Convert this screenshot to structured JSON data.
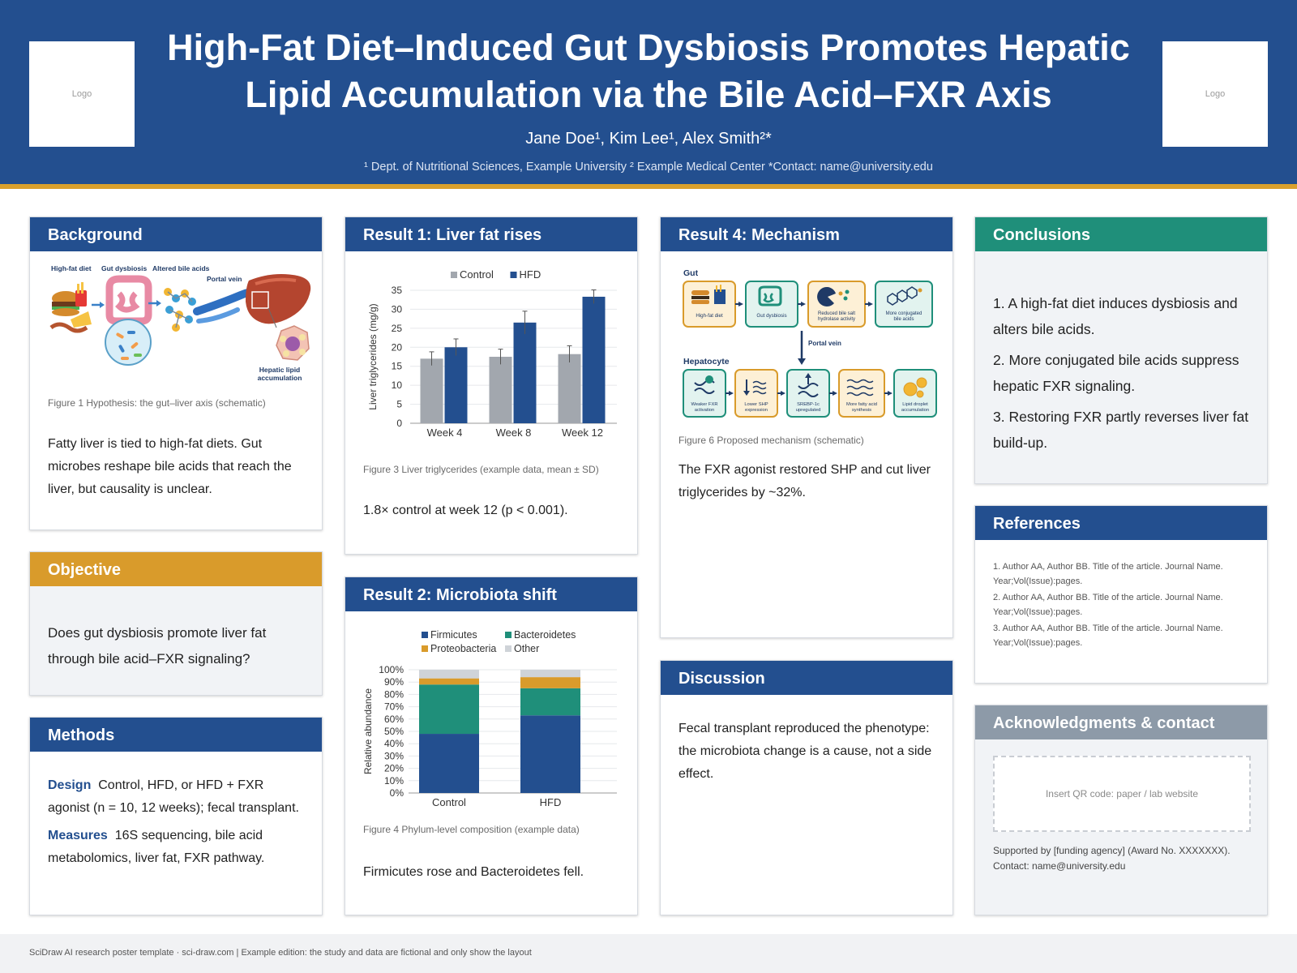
{
  "header": {
    "logo_left": "Logo",
    "logo_right": "Logo",
    "title": "High-Fat Diet–Induced Gut Dysbiosis Promotes Hepatic Lipid Accumulation via the Bile Acid–FXR Axis",
    "authors": "Jane Doe¹, Kim Lee¹, Alex Smith²*",
    "affiliations": "¹ Dept. of Nutritional Sciences, Example University   ² Example Medical Center   *Contact: name@university.edu"
  },
  "background": {
    "heading": "Background",
    "diagram_labels": {
      "high_fat_diet": "High-fat diet",
      "gut_dysbiosis": "Gut dysbiosis",
      "altered_bile_acids": "Altered bile acids",
      "portal_vein": "Portal vein",
      "hepatic_lipid": "Hepatic lipid",
      "accumulation": "accumulation"
    },
    "caption": "Figure 1  Hypothesis: the gut–liver axis (schematic)",
    "text": "Fatty liver is tied to high-fat diets. Gut microbes reshape bile acids that reach the liver, but causality is unclear."
  },
  "objective": {
    "heading": "Objective",
    "text": "Does gut dysbiosis promote liver fat through bile acid–FXR signaling?"
  },
  "methods": {
    "heading": "Methods",
    "design_label": "Design",
    "design_text": "Control, HFD, or HFD + FXR agonist (n = 10, 12 weeks); fecal transplant.",
    "measures_label": "Measures",
    "measures_text": "16S sequencing, bile acid metabolomics, liver fat, FXR pathway."
  },
  "result1": {
    "heading": "Result 1: Liver fat rises",
    "caption": "Figure 3  Liver triglycerides (example data, mean ± SD)",
    "text": "1.8× control at week 12 (p < 0.001)."
  },
  "result2": {
    "heading": "Result 2: Microbiota shift",
    "caption": "Figure 4  Phylum-level composition (example data)",
    "text": "Firmicutes rose and Bacteroidetes fell."
  },
  "result4": {
    "heading": "Result 4: Mechanism",
    "gut_label": "Gut",
    "hepatocyte_label": "Hepatocyte",
    "portal_vein": "Portal vein",
    "gut_steps": [
      {
        "l1": "High-fat diet",
        "l2": ""
      },
      {
        "l1": "Gut dysbiosis",
        "l2": ""
      },
      {
        "l1": "Reduced bile salt",
        "l2": "hydrolase activity"
      },
      {
        "l1": "More conjugated",
        "l2": "bile acids"
      }
    ],
    "hep_steps": [
      {
        "l1": "Weaker FXR",
        "l2": "activation"
      },
      {
        "l1": "Lower SHP",
        "l2": "expression"
      },
      {
        "l1": "SREBP-1c",
        "l2": "upregulated"
      },
      {
        "l1": "More fatty acid",
        "l2": "synthesis"
      },
      {
        "l1": "Lipid droplet",
        "l2": "accumulation"
      }
    ],
    "caption": "Figure 6  Proposed mechanism (schematic)",
    "text": "The FXR agonist restored SHP and cut liver triglycerides by ~32%."
  },
  "discussion": {
    "heading": "Discussion",
    "text": "Fecal transplant reproduced the phenotype: the microbiota change is a cause, not a side effect."
  },
  "conclusions": {
    "heading": "Conclusions",
    "items": [
      "1.  A high-fat diet induces dysbiosis and alters bile acids.",
      "2.  More conjugated bile acids suppress hepatic FXR signaling.",
      "3.  Restoring FXR partly reverses liver fat build-up."
    ]
  },
  "references": {
    "heading": "References",
    "items": [
      "1. Author AA, Author BB. Title of the article. Journal Name. Year;Vol(Issue):pages.",
      "2. Author AA, Author BB. Title of the article. Journal Name. Year;Vol(Issue):pages.",
      "3. Author AA, Author BB. Title of the article. Journal Name. Year;Vol(Issue):pages."
    ]
  },
  "acknowledgments": {
    "heading": "Acknowledgments & contact",
    "qr_placeholder": "Insert QR code: paper / lab website",
    "support": "Supported by [funding agency] (Award No. XXXXXXX).",
    "contact": "Contact: name@university.edu"
  },
  "footer": {
    "text": "SciDraw AI research poster template · sci-draw.com   |   Example edition: the study and data are fictional and only show the layout"
  },
  "colors": {
    "navy": "#234f8f",
    "grey_bar": "#a2a7ae",
    "teal": "#1f8f7a",
    "gold": "#d99b2b",
    "other": "#cfd3d8"
  },
  "chart_data": [
    {
      "type": "bar",
      "categories": [
        "Week 4",
        "Week 8",
        "Week 12"
      ],
      "series": [
        {
          "name": "Control",
          "values": [
            17,
            17.5,
            18.2
          ],
          "sd": [
            1.8,
            2.0,
            2.2
          ],
          "color": "#a2a7ae"
        },
        {
          "name": "HFD",
          "values": [
            20,
            26.5,
            33.3
          ],
          "sd": [
            2.2,
            3.0,
            1.8
          ],
          "color": "#234f8f"
        }
      ],
      "ylabel": "Liver triglycerides (mg/g)",
      "ylim": [
        0,
        35
      ],
      "yticks": [
        0,
        5,
        10,
        15,
        20,
        25,
        30,
        35
      ],
      "legend": "top",
      "grid": true
    },
    {
      "type": "bar",
      "stacked": true,
      "categories": [
        "Control",
        "HFD"
      ],
      "series": [
        {
          "name": "Firmicutes",
          "values": [
            48,
            63
          ],
          "color": "#234f8f"
        },
        {
          "name": "Bacteroidetes",
          "values": [
            40,
            22
          ],
          "color": "#1f8f7a"
        },
        {
          "name": "Proteobacteria",
          "values": [
            5,
            9
          ],
          "color": "#d99b2b"
        },
        {
          "name": "Other",
          "values": [
            7,
            6
          ],
          "color": "#cfd3d8"
        }
      ],
      "ylabel": "Relative abundance",
      "ylim": [
        0,
        100
      ],
      "yticks": [
        "0%",
        "10%",
        "20%",
        "30%",
        "40%",
        "50%",
        "60%",
        "70%",
        "80%",
        "90%",
        "100%"
      ],
      "legend": "top",
      "grid": true
    }
  ]
}
